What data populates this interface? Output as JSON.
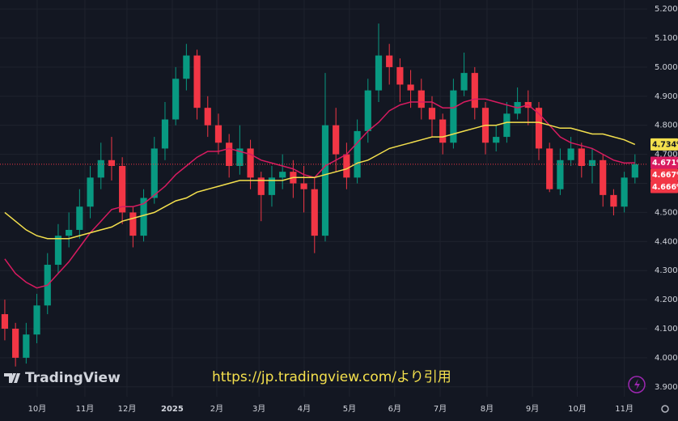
{
  "chart_data": {
    "type": "candlestick",
    "categories": [
      null,
      null,
      null,
      null,
      null,
      null,
      null,
      null,
      null,
      null,
      null,
      null,
      null,
      null,
      null,
      null,
      null,
      null,
      null,
      null,
      null,
      null,
      null,
      null,
      null,
      null,
      null,
      null,
      null,
      null,
      null,
      null,
      null,
      null,
      null,
      null,
      null,
      null,
      null,
      null,
      null,
      null,
      null,
      null,
      null,
      null,
      null,
      null,
      null,
      null,
      null,
      null,
      null,
      null,
      null,
      null,
      null,
      null,
      null,
      null
    ],
    "ohlc": {
      "open": [
        4.15,
        4.1,
        4.0,
        4.08,
        4.18,
        4.32,
        4.42,
        4.44,
        4.52,
        4.62,
        4.68,
        4.66,
        4.5,
        4.42,
        4.55,
        4.72,
        4.82,
        4.96,
        5.04,
        4.86,
        4.8,
        4.74,
        4.66,
        4.72,
        4.62,
        4.56,
        4.62,
        4.64,
        4.6,
        4.58,
        4.42,
        4.8,
        4.7,
        4.62,
        4.78,
        4.92,
        5.04,
        5.0,
        4.94,
        4.92,
        4.86,
        4.82,
        4.74,
        4.92,
        4.98,
        4.86,
        4.74,
        4.76,
        4.84,
        4.88,
        4.86,
        4.72,
        4.58,
        4.68,
        4.72,
        4.66,
        4.68,
        4.56,
        4.52,
        4.62
      ],
      "high": [
        4.2,
        4.12,
        4.12,
        4.22,
        4.36,
        4.46,
        4.5,
        4.58,
        4.66,
        4.74,
        4.76,
        4.69,
        4.52,
        4.58,
        4.76,
        4.88,
        5.0,
        5.08,
        5.06,
        4.9,
        4.84,
        4.77,
        4.8,
        4.75,
        4.64,
        4.66,
        4.7,
        4.68,
        4.66,
        4.62,
        4.98,
        4.86,
        4.74,
        4.82,
        4.96,
        5.15,
        5.08,
        5.03,
        4.99,
        4.96,
        4.9,
        4.84,
        4.96,
        5.05,
        5.0,
        4.88,
        4.8,
        4.88,
        4.93,
        4.92,
        4.88,
        4.74,
        4.72,
        4.76,
        4.74,
        4.72,
        4.7,
        4.58,
        4.64,
        4.7
      ],
      "low": [
        4.06,
        3.97,
        3.98,
        4.05,
        4.15,
        4.29,
        4.38,
        4.41,
        4.48,
        4.58,
        4.61,
        4.46,
        4.38,
        4.4,
        4.53,
        4.68,
        4.8,
        4.92,
        4.82,
        4.76,
        4.7,
        4.62,
        4.63,
        4.58,
        4.47,
        4.52,
        4.58,
        4.55,
        4.5,
        4.36,
        4.4,
        4.64,
        4.58,
        4.6,
        4.74,
        4.88,
        4.94,
        4.88,
        4.86,
        4.82,
        4.76,
        4.7,
        4.72,
        4.9,
        4.82,
        4.7,
        4.71,
        4.74,
        4.82,
        4.8,
        4.68,
        4.57,
        4.56,
        4.66,
        4.62,
        4.6,
        4.52,
        4.49,
        4.5,
        4.6
      ],
      "close": [
        4.1,
        4.0,
        4.08,
        4.18,
        4.32,
        4.42,
        4.44,
        4.52,
        4.62,
        4.68,
        4.66,
        4.5,
        4.42,
        4.55,
        4.72,
        4.82,
        4.96,
        5.04,
        4.86,
        4.8,
        4.74,
        4.66,
        4.72,
        4.62,
        4.56,
        4.62,
        4.64,
        4.6,
        4.58,
        4.42,
        4.8,
        4.7,
        4.62,
        4.78,
        4.92,
        5.04,
        5.0,
        4.94,
        4.92,
        4.86,
        4.82,
        4.74,
        4.92,
        4.98,
        4.86,
        4.74,
        4.76,
        4.84,
        4.88,
        4.86,
        4.72,
        4.58,
        4.68,
        4.72,
        4.66,
        4.68,
        4.56,
        4.52,
        4.62,
        4.666
      ]
    },
    "up_color": "#089981",
    "down_color": "#f23645",
    "lines": [
      {
        "color": "#d81b60",
        "values": [
          4.34,
          4.29,
          4.26,
          4.24,
          4.25,
          4.29,
          4.33,
          4.38,
          4.43,
          4.47,
          4.51,
          4.52,
          4.52,
          4.53,
          4.56,
          4.59,
          4.63,
          4.66,
          4.69,
          4.71,
          4.71,
          4.72,
          4.71,
          4.7,
          4.68,
          4.67,
          4.66,
          4.65,
          4.63,
          4.62,
          4.66,
          4.68,
          4.7,
          4.74,
          4.78,
          4.81,
          4.85,
          4.87,
          4.88,
          4.88,
          4.88,
          4.86,
          4.86,
          4.88,
          4.89,
          4.89,
          4.88,
          4.87,
          4.86,
          4.87,
          4.84,
          4.8,
          4.76,
          4.74,
          4.73,
          4.72,
          4.7,
          4.68,
          4.67,
          4.671
        ]
      },
      {
        "color": "#f4e04d",
        "values": [
          4.5,
          4.47,
          4.44,
          4.42,
          4.41,
          4.41,
          4.41,
          4.42,
          4.43,
          4.44,
          4.45,
          4.47,
          4.48,
          4.49,
          4.5,
          4.52,
          4.54,
          4.55,
          4.57,
          4.58,
          4.59,
          4.6,
          4.61,
          4.61,
          4.61,
          4.61,
          4.61,
          4.62,
          4.62,
          4.62,
          4.63,
          4.64,
          4.65,
          4.67,
          4.68,
          4.7,
          4.72,
          4.73,
          4.74,
          4.75,
          4.76,
          4.76,
          4.77,
          4.78,
          4.79,
          4.8,
          4.8,
          4.81,
          4.81,
          4.81,
          4.81,
          4.8,
          4.79,
          4.79,
          4.78,
          4.77,
          4.77,
          4.76,
          4.75,
          4.734
        ]
      }
    ],
    "price_labels": [
      {
        "value": 4.734,
        "label": "4.734%",
        "color": "#f4e04d"
      },
      {
        "value": 4.671,
        "label": "4.671%",
        "color": "#d81b60"
      },
      {
        "value": 4.667,
        "label": "4.667%",
        "color": "#f23645"
      },
      {
        "value": 4.666,
        "label": "4.666%",
        "color": "#f23645"
      }
    ],
    "xlim": [
      -0.45,
      60.15
    ],
    "xticks": [
      {
        "value": 3.03,
        "label": "10月"
      },
      {
        "value": 7.5,
        "label": "11月"
      },
      {
        "value": 11.44,
        "label": "12月"
      },
      {
        "value": 15.68,
        "label": "2025"
      },
      {
        "value": 19.85,
        "label": "2月"
      },
      {
        "value": 23.8,
        "label": "3月"
      },
      {
        "value": 28.03,
        "label": "4月"
      },
      {
        "value": 32.27,
        "label": "5月"
      },
      {
        "value": 36.5,
        "label": "6月"
      },
      {
        "value": 40.76,
        "label": "7月"
      },
      {
        "value": 45.15,
        "label": "8月"
      },
      {
        "value": 49.4,
        "label": "9月"
      },
      {
        "value": 53.6,
        "label": "10月"
      },
      {
        "value": 58,
        "label": "11月"
      }
    ],
    "ylim": [
      3.866,
      5.231
    ],
    "yticks": [
      {
        "value": 3.9,
        "label": "3.900%"
      },
      {
        "value": 4.0,
        "label": "4.000%"
      },
      {
        "value": 4.1,
        "label": "4.100%"
      },
      {
        "value": 4.2,
        "label": "4.200%"
      },
      {
        "value": 4.3,
        "label": "4.300%"
      },
      {
        "value": 4.4,
        "label": "4.400%"
      },
      {
        "value": 4.5,
        "label": "4.500%"
      },
      {
        "value": 4.6,
        "label": "4.600%"
      },
      {
        "value": 4.7,
        "label": "4.700%"
      },
      {
        "value": 4.8,
        "label": "4.800%"
      },
      {
        "value": 4.9,
        "label": "4.900%"
      },
      {
        "value": 5.0,
        "label": "5.000%"
      },
      {
        "value": 5.1,
        "label": "5.100%"
      },
      {
        "value": 5.2,
        "label": "5.200%"
      }
    ],
    "grid": true,
    "watermark": "TradingView",
    "source_note": "https://jp.tradingview.com/より引用"
  }
}
